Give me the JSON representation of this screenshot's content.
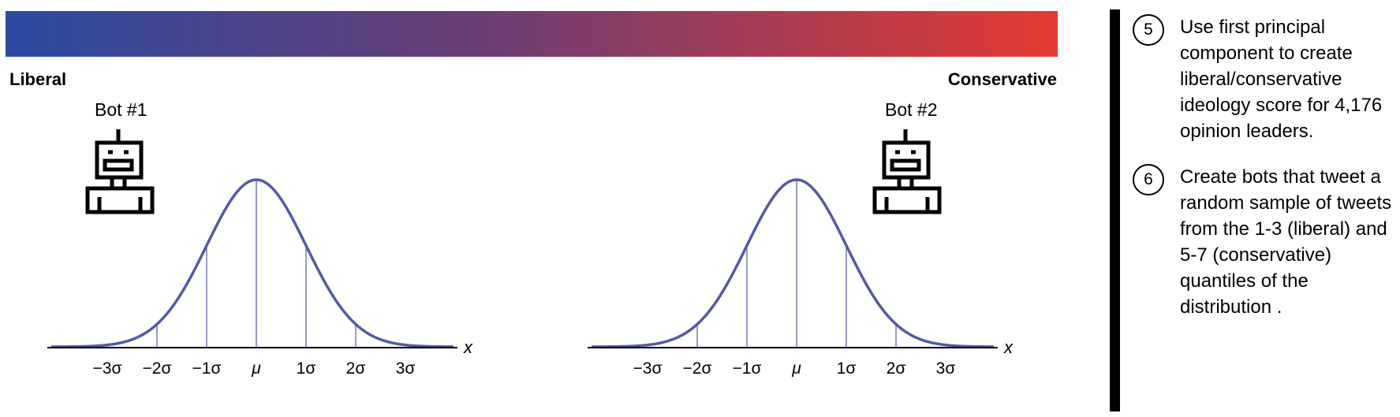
{
  "spectrum": {
    "left_label": "Liberal",
    "right_label": "Conservative",
    "gradient_start": "#2b4aa0",
    "gradient_mid": "#6a3e75",
    "gradient_end": "#e53a32"
  },
  "bots": [
    {
      "label": "Bot #1"
    },
    {
      "label": "Bot #2"
    }
  ],
  "distribution": {
    "axis_label": "x",
    "tick_labels": [
      "−3σ",
      "−2σ",
      "−1σ",
      "μ",
      "1σ",
      "2σ",
      "3σ"
    ],
    "curve_color": "#5459a6"
  },
  "steps": [
    {
      "number": "5",
      "text": "Use first principal component to create liberal/conservative ideology score for 4,176 opinion leaders."
    },
    {
      "number": "6",
      "text": "Create bots that tweet a random sample of tweets from the 1-3 (liberal) and 5-7 (conservative) quantiles of the distribution ."
    }
  ],
  "icons": [
    "robot-icon"
  ]
}
